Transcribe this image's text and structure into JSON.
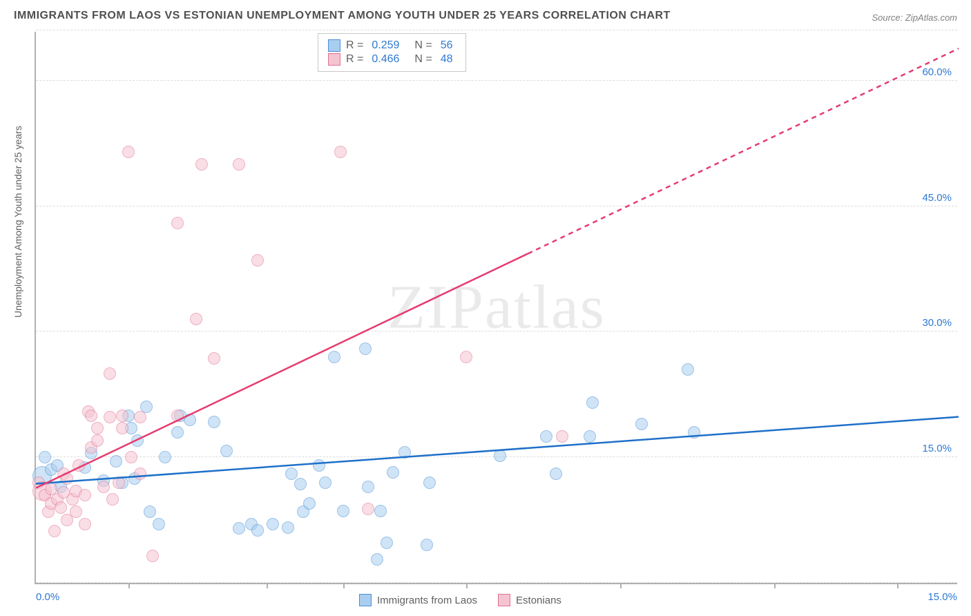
{
  "title": "IMMIGRANTS FROM LAOS VS ESTONIAN UNEMPLOYMENT AMONG YOUTH UNDER 25 YEARS CORRELATION CHART",
  "source": "Source: ZipAtlas.com",
  "ylabel": "Unemployment Among Youth under 25 years",
  "watermark": "ZIPatlas",
  "chart": {
    "type": "scatter",
    "xlim": [
      0,
      15
    ],
    "ylim": [
      0,
      66
    ],
    "background_color": "#ffffff",
    "grid_color": "#dcdcdc",
    "axis_color": "#b0b0b0",
    "label_color": "#2e78d2",
    "label_fontsize": 15,
    "x_axis_labels": [
      {
        "v": 0,
        "t": "0.0%"
      },
      {
        "v": 15,
        "t": "15.0%"
      }
    ],
    "x_ticks_minor": [
      1.5,
      3.75,
      5.0,
      7.0,
      9.5,
      12.0,
      14.0
    ],
    "y_axis_labels": [
      {
        "v": 15,
        "t": "15.0%"
      },
      {
        "v": 30,
        "t": "30.0%"
      },
      {
        "v": 45,
        "t": "45.0%"
      },
      {
        "v": 60,
        "t": "60.0%"
      }
    ],
    "y_gridlines": [
      0,
      15,
      30,
      45,
      60,
      66
    ],
    "marker_radius": 9,
    "marker_opacity": 0.55,
    "trend_line_width": 2.5,
    "series": [
      {
        "key": "laos",
        "label": "Immigrants from Laos",
        "fill": "#a9cef0",
        "stroke": "#4a8fd6",
        "trend_color": "#1e70c9",
        "R": "0.259",
        "N": "56",
        "trend": {
          "x1": 0,
          "y1": 12,
          "x2": 15,
          "y2": 20,
          "dashed_after_x": null
        },
        "points": [
          [
            0.1,
            12.8,
            14
          ],
          [
            0.15,
            15,
            9
          ],
          [
            0.25,
            13.5,
            9
          ],
          [
            0.35,
            14,
            9
          ],
          [
            0.4,
            11.5,
            9
          ],
          [
            0.8,
            13.8,
            9
          ],
          [
            0.9,
            15.5,
            9
          ],
          [
            1.1,
            12.2,
            9
          ],
          [
            1.3,
            14.5,
            9
          ],
          [
            1.4,
            12,
            9
          ],
          [
            1.5,
            20,
            9
          ],
          [
            1.55,
            18.5,
            9
          ],
          [
            1.6,
            12.5,
            9
          ],
          [
            1.65,
            17,
            9
          ],
          [
            1.8,
            21,
            9
          ],
          [
            1.85,
            8.5,
            9
          ],
          [
            2.0,
            7,
            9
          ],
          [
            2.1,
            15,
            9
          ],
          [
            2.3,
            18,
            9
          ],
          [
            2.35,
            20,
            9
          ],
          [
            2.5,
            19.5,
            9
          ],
          [
            2.9,
            19.2,
            9
          ],
          [
            3.1,
            15.8,
            9
          ],
          [
            3.3,
            6.5,
            9
          ],
          [
            3.5,
            7,
            9
          ],
          [
            3.6,
            6.3,
            9
          ],
          [
            3.85,
            7,
            9
          ],
          [
            4.1,
            6.6,
            9
          ],
          [
            4.15,
            13,
            9
          ],
          [
            4.3,
            11.8,
            9
          ],
          [
            4.35,
            8.5,
            9
          ],
          [
            4.45,
            9.5,
            9
          ],
          [
            4.6,
            14,
            9
          ],
          [
            4.7,
            12,
            9
          ],
          [
            4.85,
            27,
            9
          ],
          [
            5.0,
            8.6,
            9
          ],
          [
            5.35,
            28,
            9
          ],
          [
            5.4,
            11.5,
            9
          ],
          [
            5.55,
            2.8,
            9
          ],
          [
            5.6,
            8.6,
            9
          ],
          [
            5.7,
            4.8,
            9
          ],
          [
            5.8,
            13.2,
            9
          ],
          [
            6.0,
            15.6,
            9
          ],
          [
            6.35,
            4.5,
            9
          ],
          [
            6.4,
            12,
            9
          ],
          [
            7.55,
            15.2,
            9
          ],
          [
            8.3,
            17.5,
            9
          ],
          [
            8.45,
            13,
            9
          ],
          [
            9.0,
            17.5,
            9
          ],
          [
            9.05,
            21.5,
            9
          ],
          [
            9.85,
            19,
            9
          ],
          [
            10.6,
            25.5,
            9
          ],
          [
            10.7,
            18,
            9
          ]
        ]
      },
      {
        "key": "estonians",
        "label": "Estonians",
        "fill": "#f5c4d1",
        "stroke": "#e07093",
        "trend_color": "#e63b6f",
        "R": "0.466",
        "N": "48",
        "trend": {
          "x1": 0,
          "y1": 11.5,
          "x2": 15,
          "y2": 64,
          "dashed_after_x": 8.0
        },
        "points": [
          [
            0.05,
            12,
            9
          ],
          [
            0.1,
            11,
            14
          ],
          [
            0.15,
            10.5,
            9
          ],
          [
            0.2,
            8.5,
            9
          ],
          [
            0.25,
            9.5,
            9
          ],
          [
            0.25,
            11.2,
            9
          ],
          [
            0.3,
            6.2,
            9
          ],
          [
            0.35,
            10,
            9
          ],
          [
            0.4,
            9,
            9
          ],
          [
            0.45,
            10.8,
            9
          ],
          [
            0.45,
            13,
            9
          ],
          [
            0.5,
            7.5,
            9
          ],
          [
            0.5,
            12.5,
            9
          ],
          [
            0.6,
            10,
            9
          ],
          [
            0.65,
            8.5,
            9
          ],
          [
            0.65,
            11,
            9
          ],
          [
            0.7,
            14,
            9
          ],
          [
            0.8,
            7,
            9
          ],
          [
            0.8,
            10.5,
            9
          ],
          [
            0.85,
            20.5,
            9
          ],
          [
            0.9,
            20,
            9
          ],
          [
            0.9,
            16.2,
            9
          ],
          [
            1.0,
            18.5,
            9
          ],
          [
            1.0,
            17,
            9
          ],
          [
            1.1,
            11.5,
            9
          ],
          [
            1.2,
            25,
            9
          ],
          [
            1.2,
            19.8,
            9
          ],
          [
            1.25,
            10,
            9
          ],
          [
            1.35,
            12,
            9
          ],
          [
            1.4,
            18.5,
            9
          ],
          [
            1.4,
            20,
            9
          ],
          [
            1.5,
            51.5,
            9
          ],
          [
            1.55,
            15,
            9
          ],
          [
            1.7,
            13,
            9
          ],
          [
            1.7,
            19.8,
            9
          ],
          [
            1.9,
            3.2,
            9
          ],
          [
            2.3,
            43,
            9
          ],
          [
            2.3,
            20,
            9
          ],
          [
            2.6,
            31.5,
            9
          ],
          [
            2.7,
            50,
            9
          ],
          [
            2.9,
            26.8,
            9
          ],
          [
            3.3,
            50,
            9
          ],
          [
            3.6,
            38.5,
            9
          ],
          [
            4.95,
            51.5,
            9
          ],
          [
            5.4,
            8.8,
            9
          ],
          [
            7.0,
            27,
            9
          ],
          [
            8.55,
            17.5,
            9
          ]
        ]
      }
    ]
  },
  "legend_top": {
    "R_label": "R =",
    "N_label": "N ="
  }
}
